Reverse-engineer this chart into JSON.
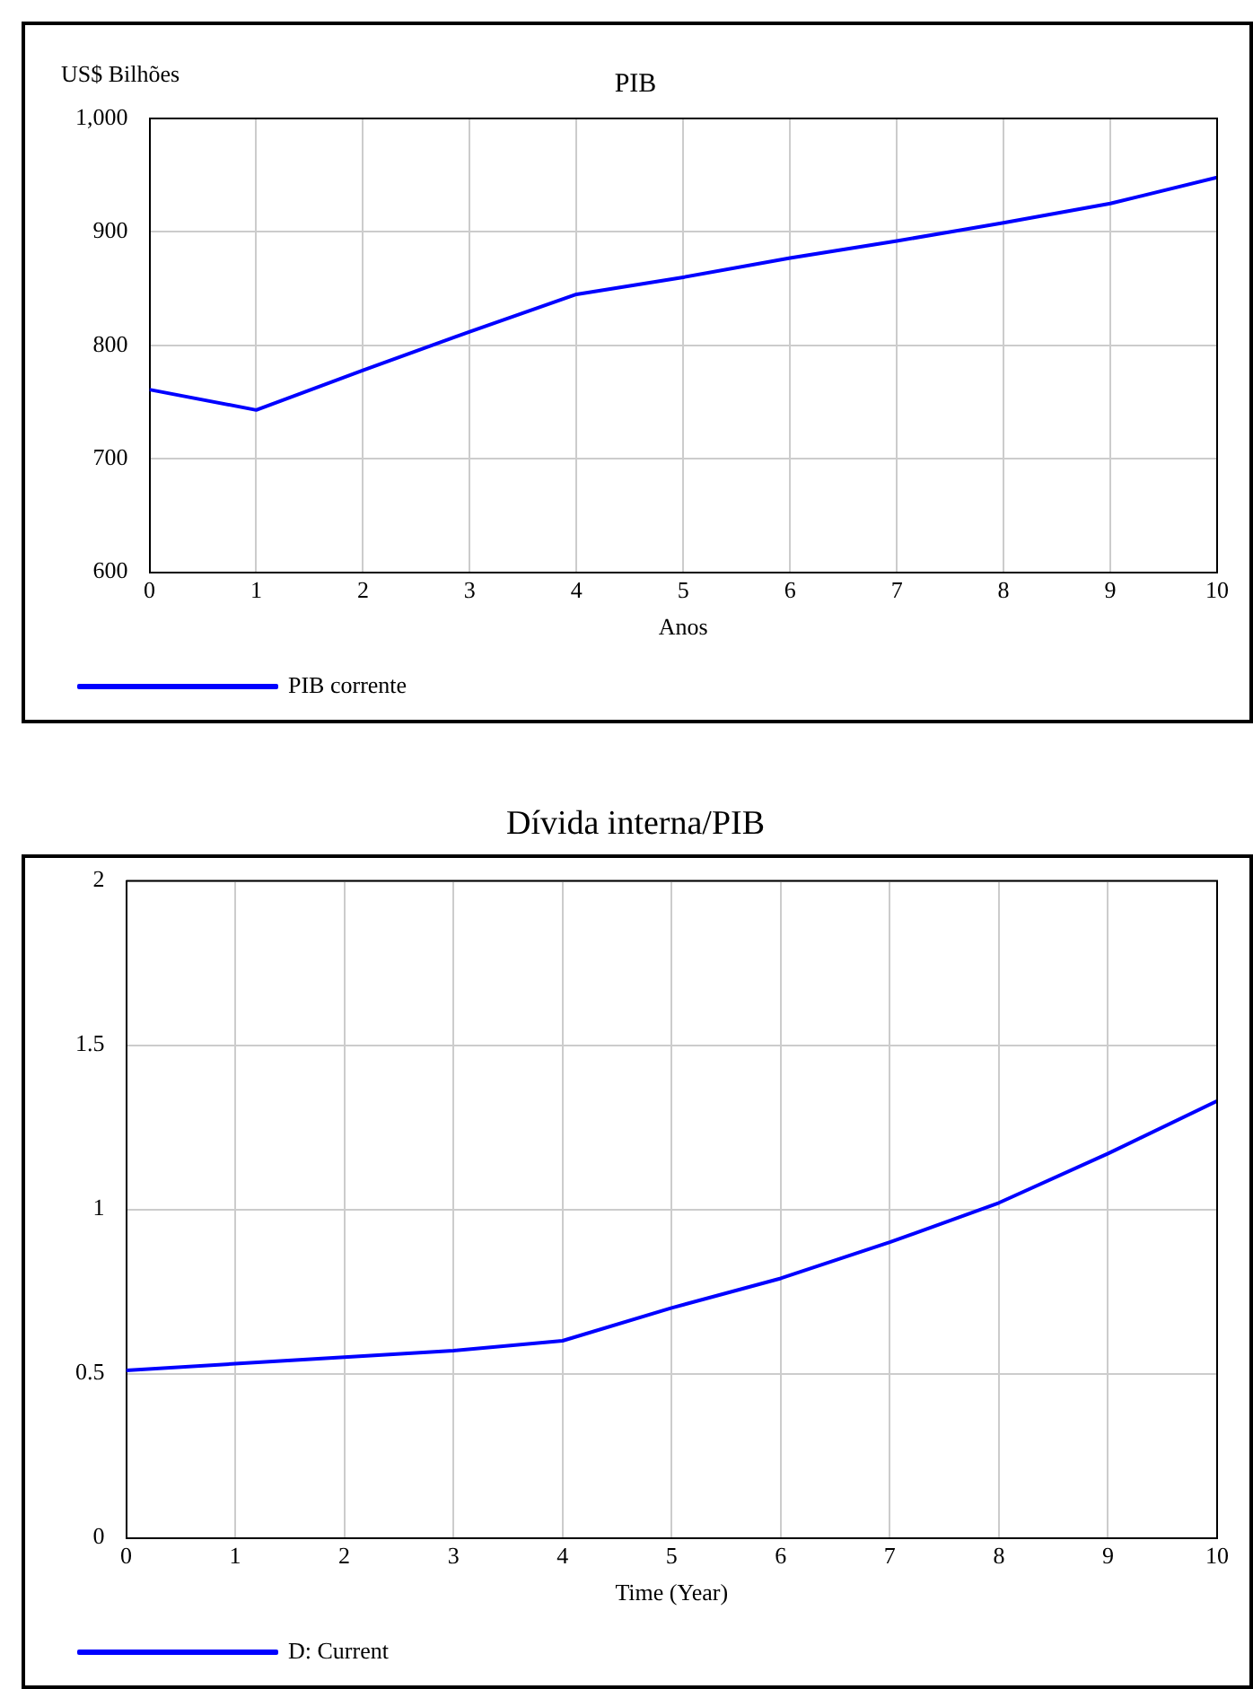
{
  "chart_data": [
    {
      "type": "line",
      "title": "PIB",
      "ylabel": "US$ Bilhões",
      "xlabel": "Anos",
      "x": [
        0,
        1,
        2,
        3,
        4,
        5,
        6,
        7,
        8,
        9,
        10
      ],
      "series": [
        {
          "name": "PIB corrente",
          "color": "#0000ff",
          "values": [
            761,
            743,
            778,
            812,
            845,
            860,
            877,
            892,
            908,
            925,
            948
          ]
        }
      ],
      "xlim": [
        0,
        10
      ],
      "xticks": [
        0,
        1,
        2,
        3,
        4,
        5,
        6,
        7,
        8,
        9,
        10
      ],
      "ylim": [
        600,
        1000
      ],
      "yticks": [
        600,
        700,
        800,
        900,
        {
          "value": 1000,
          "label": "1,000"
        }
      ],
      "grid": true,
      "legend": "bottom left",
      "marker": "none",
      "line_style": "solid"
    },
    {
      "type": "line",
      "title": "Dívida interna/PIB",
      "xlabel": "Time (Year)",
      "x": [
        0,
        1,
        2,
        3,
        4,
        5,
        6,
        7,
        8,
        9,
        10
      ],
      "series": [
        {
          "name": "D: Current",
          "color": "#0000ff",
          "values": [
            0.51,
            0.53,
            0.55,
            0.57,
            0.6,
            0.7,
            0.79,
            0.9,
            1.02,
            1.17,
            1.33
          ]
        }
      ],
      "xlim": [
        0,
        10
      ],
      "xticks": [
        0,
        1,
        2,
        3,
        4,
        5,
        6,
        7,
        8,
        9,
        10
      ],
      "ylim": [
        0,
        2
      ],
      "yticks": [
        0,
        0.5,
        1,
        1.5,
        2
      ],
      "grid": true,
      "legend": "bottom left",
      "marker": "none",
      "line_style": "solid"
    }
  ]
}
